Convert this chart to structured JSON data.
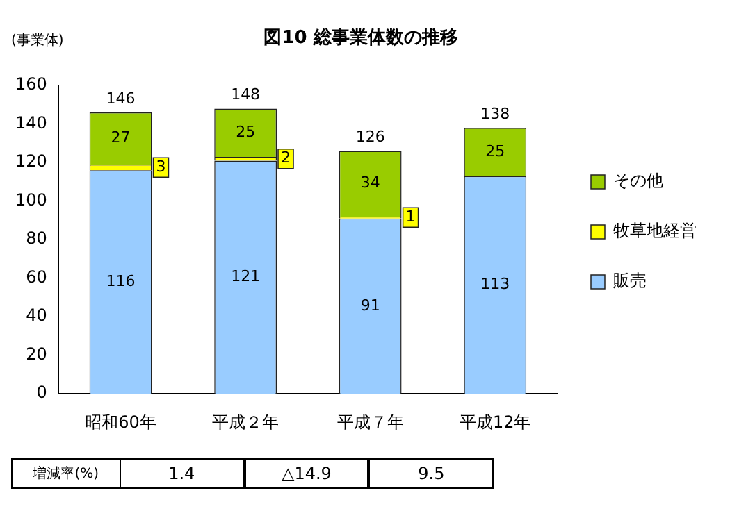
{
  "chart_data": {
    "type": "bar",
    "title": "図10 総事業体数の推移",
    "ylabel": "(事業体)",
    "categories": [
      "昭和60年",
      "平成２年",
      "平成７年",
      "平成12年"
    ],
    "stacked": true,
    "series": [
      {
        "name": "販売",
        "color": "#99ccff",
        "values": [
          116,
          121,
          91,
          113
        ],
        "value_labels": [
          "116",
          "121",
          "91",
          "113"
        ]
      },
      {
        "name": "牧草地経営",
        "color": "#ffff00",
        "values": [
          3,
          2,
          1,
          0
        ],
        "value_labels": [
          "3",
          "2",
          "1",
          null
        ]
      },
      {
        "name": "その他",
        "color": "#99cc00",
        "values": [
          27,
          25,
          34,
          25
        ],
        "value_labels": [
          "27",
          "25",
          "34",
          "25"
        ]
      }
    ],
    "totals": [
      "146",
      "148",
      "126",
      "138"
    ],
    "ylim": [
      0,
      160
    ],
    "yticks": [
      0,
      20,
      40,
      60,
      80,
      100,
      120,
      140,
      160
    ],
    "grid": false,
    "legend": "right",
    "annotations": [
      "増減率(%)",
      "1.4",
      "△14.9",
      "9.5"
    ]
  }
}
